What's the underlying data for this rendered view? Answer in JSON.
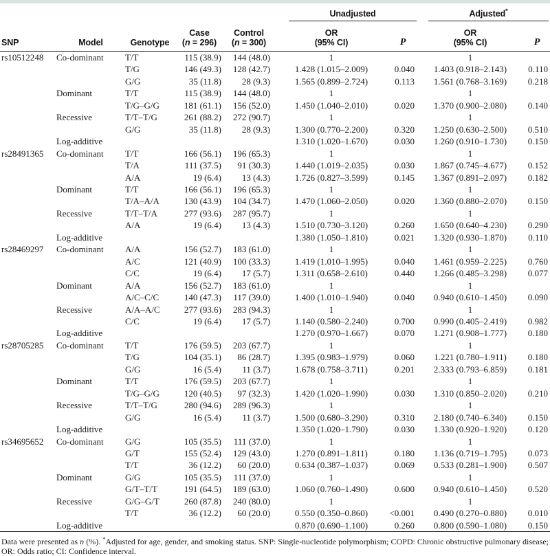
{
  "table": {
    "headers": {
      "snp": "SNP",
      "model": "Model",
      "genotype": "Genotype",
      "case_line1": "Case",
      "control_line1": "Control",
      "paren_open": "(",
      "n_symbol": "n",
      "case_n_suffix": " = 296)",
      "control_n_suffix": " = 300)",
      "unadjusted": "Unadjusted",
      "adjusted": "Adjusted",
      "adjusted_sup": "*",
      "or_line1": "OR",
      "or_line2": "(95% CI)",
      "p": "P"
    },
    "rows": [
      {
        "snp": "rs10512248",
        "model": "Co-dominant",
        "genotype": "T/T",
        "case": "115 (38.9)",
        "control": "144 (48.0)",
        "or1": "1",
        "p1": "",
        "or2": "1",
        "p2": ""
      },
      {
        "snp": "",
        "model": "",
        "genotype": "T/G",
        "case": "146 (49.3)",
        "control": "128 (42.7)",
        "or1": "1.428 (1.015–2.009)",
        "p1": "0.040",
        "or2": "1.403 (0.918–2.143)",
        "p2": "0.110"
      },
      {
        "snp": "",
        "model": "",
        "genotype": "G/G",
        "case": "35 (11.8)",
        "control": "28 (9.3)",
        "or1": "1.565 (0.899–2.724)",
        "p1": "0.113",
        "or2": "1.561 (0.768–3.169)",
        "p2": "0.218"
      },
      {
        "snp": "",
        "model": "Dominant",
        "genotype": "T/T",
        "case": "115 (38.9)",
        "control": "144 (48.0)",
        "or1": "1",
        "p1": "",
        "or2": "1",
        "p2": ""
      },
      {
        "snp": "",
        "model": "",
        "genotype": "T/G–G/G",
        "case": "181 (61.1)",
        "control": "156 (52.0)",
        "or1": "1.450 (1.040–2.010)",
        "p1": "0.020",
        "or2": "1.370 (0.900–2.080)",
        "p2": "0.140"
      },
      {
        "snp": "",
        "model": "Recessive",
        "genotype": "T/T–T/G",
        "case": "261 (88.2)",
        "control": "272 (90.7)",
        "or1": "1",
        "p1": "",
        "or2": "1",
        "p2": ""
      },
      {
        "snp": "",
        "model": "",
        "genotype": "G/G",
        "case": "35 (11.8)",
        "control": "28 (9.3)",
        "or1": "1.300 (0.770–2.200)",
        "p1": "0.320",
        "or2": "1.250 (0.630–2.500)",
        "p2": "0.510"
      },
      {
        "snp": "",
        "model": "Log-additive",
        "genotype": "",
        "case": "",
        "control": "",
        "or1": "1.310 (1.020–1.670)",
        "p1": "0.030",
        "or2": "1.260 (0.910–1.730)",
        "p2": "0.150"
      },
      {
        "snp": "rs28491365",
        "model": "Co-dominant",
        "genotype": "T/T",
        "case": "166 (56.1)",
        "control": "196 (65.3)",
        "or1": "1",
        "p1": "",
        "or2": "1",
        "p2": ""
      },
      {
        "snp": "",
        "model": "",
        "genotype": "T/A",
        "case": "111 (37.5)",
        "control": "91 (30.3)",
        "or1": "1.440 (1.019–2.035)",
        "p1": "0.030",
        "or2": "1.867 (0.745–4.677)",
        "p2": "0.152"
      },
      {
        "snp": "",
        "model": "",
        "genotype": "A/A",
        "case": "19 (6.4)",
        "control": "13 (4.3)",
        "or1": "1.726 (0.827–3.599)",
        "p1": "0.145",
        "or2": "1.367 (0.891–2.097)",
        "p2": "0.182"
      },
      {
        "snp": "",
        "model": "Dominant",
        "genotype": "T/T",
        "case": "166 (56.1)",
        "control": "196 (65.3)",
        "or1": "1",
        "p1": "",
        "or2": "1",
        "p2": ""
      },
      {
        "snp": "",
        "model": "",
        "genotype": "T/A–A/A",
        "case": "130 (43.9)",
        "control": "104 (34.7)",
        "or1": "1.470 (1.060–2.050)",
        "p1": "0.020",
        "or2": "1.360 (0.880–2.070)",
        "p2": "0.150"
      },
      {
        "snp": "",
        "model": "Recessive",
        "genotype": "T/T–T/A",
        "case": "277 (93.6)",
        "control": "287 (95.7)",
        "or1": "1",
        "p1": "",
        "or2": "1",
        "p2": ""
      },
      {
        "snp": "",
        "model": "",
        "genotype": "A/A",
        "case": "19 (6.4)",
        "control": "13 (4.3)",
        "or1": "1.510 (0.730–3.120)",
        "p1": "0.260",
        "or2": "1.650 (0.640–4.230)",
        "p2": "0.290"
      },
      {
        "snp": "",
        "model": "Log-additive",
        "genotype": "",
        "case": "",
        "control": "",
        "or1": "1.380 (1.050–1.810)",
        "p1": "0.021",
        "or2": "1.320 (0.930–1.870)",
        "p2": "0.110"
      },
      {
        "snp": "rs28469297",
        "model": "Co-dominant",
        "genotype": "A/A",
        "case": "156 (52.7)",
        "control": "183 (61.0)",
        "or1": "1",
        "p1": "",
        "or2": "1",
        "p2": ""
      },
      {
        "snp": "",
        "model": "",
        "genotype": "A/C",
        "case": "121 (40.9)",
        "control": "100 (33.3)",
        "or1": "1.419 (1.010–1.995)",
        "p1": "0.040",
        "or2": "1.461 (0.959–2.225)",
        "p2": "0.760"
      },
      {
        "snp": "",
        "model": "",
        "genotype": "C/C",
        "case": "19 (6.4)",
        "control": "17 (5.7)",
        "or1": "1.311 (0.658–2.610)",
        "p1": "0.440",
        "or2": "1.266 (0.485–3.298)",
        "p2": "0.077"
      },
      {
        "snp": "",
        "model": "Dominant",
        "genotype": "A/A",
        "case": "156 (52.7)",
        "control": "183 (61.0)",
        "or1": "1",
        "p1": "",
        "or2": "1",
        "p2": ""
      },
      {
        "snp": "",
        "model": "",
        "genotype": "A/C–C/C",
        "case": "140 (47.3)",
        "control": "117 (39.0)",
        "or1": "1.400 (1.010–1.940)",
        "p1": "0.040",
        "or2": "0.940 (0.610–1.450)",
        "p2": "0.090"
      },
      {
        "snp": "",
        "model": "Recessive",
        "genotype": "A/A–A/C",
        "case": "277 (93.6)",
        "control": "283 (94.3)",
        "or1": "1",
        "p1": "",
        "or2": "1",
        "p2": ""
      },
      {
        "snp": "",
        "model": "",
        "genotype": "C/C",
        "case": "19 (6.4)",
        "control": "17 (5.7)",
        "or1": "1.140 (0.580–2.240)",
        "p1": "0.700",
        "or2": "0.990 (0.405–2.419)",
        "p2": "0.982"
      },
      {
        "snp": "",
        "model": "Log-additive",
        "genotype": "",
        "case": "",
        "control": "",
        "or1": "1.270 (0.970–1.667)",
        "p1": "0.070",
        "or2": "1.271 (0.908–1.777)",
        "p2": "0.180"
      },
      {
        "snp": "rs28705285",
        "model": "Co-dominant",
        "genotype": "T/T",
        "case": "176 (59.5)",
        "control": "203 (67.7)",
        "or1": "1",
        "p1": "",
        "or2": "1",
        "p2": ""
      },
      {
        "snp": "",
        "model": "",
        "genotype": "T/G",
        "case": "104 (35.1)",
        "control": "86 (28.7)",
        "or1": "1.395 (0.983–1.979)",
        "p1": "0.060",
        "or2": "1.221 (0.780–1.911)",
        "p2": "0.180"
      },
      {
        "snp": "",
        "model": "",
        "genotype": "G/G",
        "case": "16 (5.4)",
        "control": "11 (3.7)",
        "or1": "1.678 (0.758–3.711)",
        "p1": "0.201",
        "or2": "2.333 (0.793–6.859)",
        "p2": "0.181"
      },
      {
        "snp": "",
        "model": "Dominant",
        "genotype": "T/T",
        "case": "176 (59.5)",
        "control": "203 (67.7)",
        "or1": "1",
        "p1": "",
        "or2": "1",
        "p2": ""
      },
      {
        "snp": "",
        "model": "",
        "genotype": "T/G–G/G",
        "case": "120 (40.5)",
        "control": "97 (32.3)",
        "or1": "1.420 (1.020–1.990)",
        "p1": "0.030",
        "or2": "1.310 (0.850–2.020)",
        "p2": "0.210"
      },
      {
        "snp": "",
        "model": "Recessive",
        "genotype": "T/T–T/G",
        "case": "280 (94.6)",
        "control": "289 (96.3)",
        "or1": "1",
        "p1": "",
        "or2": "1",
        "p2": ""
      },
      {
        "snp": "",
        "model": "",
        "genotype": "G/G",
        "case": "16 (5.4)",
        "control": "11 (3.7)",
        "or1": "1.500 (0.680–3.290)",
        "p1": "0.310",
        "or2": "2.180 (0.740–6.340)",
        "p2": "0.150"
      },
      {
        "snp": "",
        "model": "Log-additive",
        "genotype": "",
        "case": "",
        "control": "",
        "or1": "1.350 (1.020–1.790)",
        "p1": "0.030",
        "or2": "1.330 (0.920–1.920)",
        "p2": "0.120"
      },
      {
        "snp": "rs34695652",
        "model": "Co-dominant",
        "genotype": "G/G",
        "case": "105 (35.5)",
        "control": "111 (37.0)",
        "or1": "1",
        "p1": "",
        "or2": "1",
        "p2": ""
      },
      {
        "snp": "",
        "model": "",
        "genotype": "G/T",
        "case": "155 (52.4)",
        "control": "129 (43.0)",
        "or1": "1.270 (0.891–1.811)",
        "p1": "0.180",
        "or2": "1.136 (0.719–1.795)",
        "p2": "0.073"
      },
      {
        "snp": "",
        "model": "",
        "genotype": "T/T",
        "case": "36 (12.2)",
        "control": "60 (20.0)",
        "or1": "0.634 (0.387–1.037)",
        "p1": "0.069",
        "or2": "0.533 (0.281–1.900)",
        "p2": "0.507"
      },
      {
        "snp": "",
        "model": "Dominant",
        "genotype": "G/G",
        "case": "105 (35.5)",
        "control": "111 (37.0)",
        "or1": "1",
        "p1": "",
        "or2": "1",
        "p2": ""
      },
      {
        "snp": "",
        "model": "",
        "genotype": "G/T–T/T",
        "case": "191 (64.5)",
        "control": "189 (63.0)",
        "or1": "1.060 (0.760–1.490)",
        "p1": "0.600",
        "or2": "0.940 (0.610–1.450)",
        "p2": "0.520"
      },
      {
        "snp": "",
        "model": "Recessive",
        "genotype": "G/G–G/T",
        "case": "260 (87.8)",
        "control": "240 (80.0)",
        "or1": "1",
        "p1": "",
        "or2": "1",
        "p2": ""
      },
      {
        "snp": "",
        "model": "",
        "genotype": "T/T",
        "case": "36 (12.2)",
        "control": "60 (20.0)",
        "or1": "0.550 (0.350–0.860)",
        "p1": "<0.001",
        "or2": "0.490 (0.270–0.880)",
        "p2": "0.010"
      },
      {
        "snp": "",
        "model": "Log-additive",
        "genotype": "",
        "case": "",
        "control": "",
        "or1": "0.870 (0.690–1.100)",
        "p1": "0.260",
        "or2": "0.800 (0.590–1.080)",
        "p2": "0.150"
      }
    ]
  },
  "footnote": {
    "data_presented": "Data were presented as ",
    "n_symbol": "n",
    "after_n": " (%). ",
    "star": "*",
    "adjusted_note": "Adjusted for age, gender, and smoking status. SNP: Single-nucleotide polymorphism; COPD: Chronic obstructive pulmonary disease; OR: Odds ratio; CI: Confidence interval."
  },
  "colors": {
    "top_band": "#d8e3dd",
    "rule": "#1b1b1b",
    "text": "#1b1b1b"
  }
}
